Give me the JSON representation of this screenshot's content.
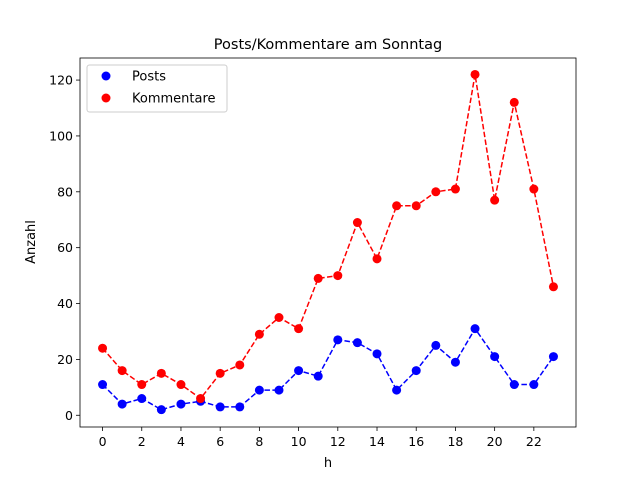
{
  "chart_data": {
    "type": "line",
    "title": "Posts/Kommentare am Sonntag",
    "xlabel": "h",
    "ylabel": "Anzahl",
    "x": [
      0,
      1,
      2,
      3,
      4,
      5,
      6,
      7,
      8,
      9,
      10,
      11,
      12,
      13,
      14,
      15,
      16,
      17,
      18,
      19,
      20,
      21,
      22,
      23
    ],
    "xlim": [
      -1.15,
      24.15
    ],
    "ylim": [
      -4.2,
      127.9
    ],
    "xticks": [
      "0",
      "2",
      "4",
      "6",
      "8",
      "10",
      "12",
      "14",
      "16",
      "18",
      "20",
      "22"
    ],
    "yticks": [
      "0",
      "20",
      "40",
      "60",
      "80",
      "100",
      "120"
    ],
    "grid": false,
    "legend_position": "upper left",
    "series": [
      {
        "name": "Posts",
        "color": "#0000ff",
        "values": [
          11,
          4,
          6,
          2,
          4,
          5,
          3,
          3,
          9,
          9,
          16,
          14,
          27,
          26,
          22,
          9,
          16,
          25,
          19,
          31,
          21,
          11,
          11,
          21
        ]
      },
      {
        "name": "Kommentare",
        "color": "#ff0000",
        "values": [
          24,
          16,
          11,
          15,
          11,
          6,
          15,
          18,
          29,
          35,
          31,
          49,
          50,
          69,
          56,
          75,
          75,
          80,
          81,
          122,
          77,
          112,
          81,
          46
        ]
      }
    ]
  }
}
